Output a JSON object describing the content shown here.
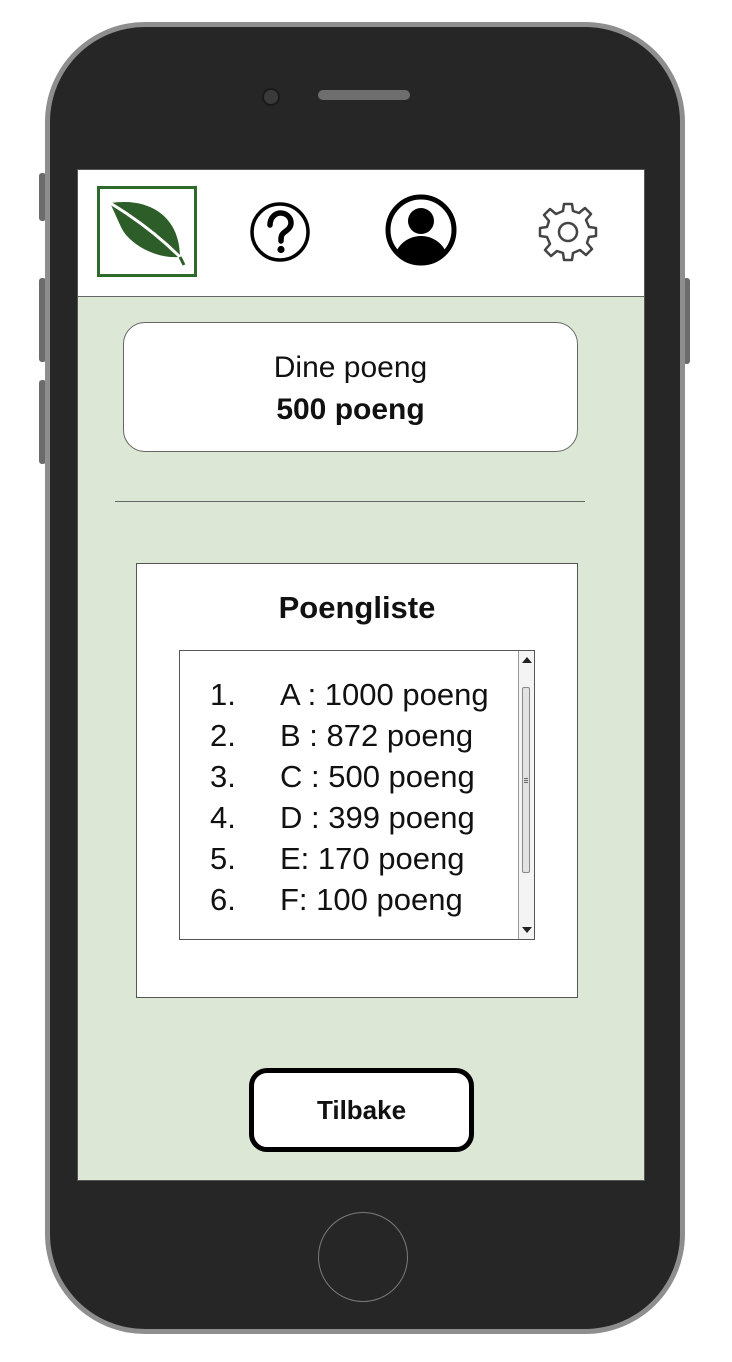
{
  "header": {
    "icons": [
      "leaf-logo-icon",
      "help-icon",
      "profile-icon",
      "gear-icon"
    ]
  },
  "points": {
    "label": "Dine poeng",
    "value": "500 poeng"
  },
  "leaderboard": {
    "title": "Poengliste",
    "items": [
      {
        "rank": "1.",
        "text": "A : 1000 poeng"
      },
      {
        "rank": "2.",
        "text": "B : 872 poeng"
      },
      {
        "rank": "3.",
        "text": "C : 500 poeng"
      },
      {
        "rank": "4.",
        "text": "D : 399 poeng"
      },
      {
        "rank": "5.",
        "text": "E:  170 poeng"
      },
      {
        "rank": "6.",
        "text": "F:  100 poeng"
      }
    ]
  },
  "actions": {
    "back_label": "Tilbake"
  },
  "colors": {
    "screen_background": "#dce8d5",
    "brand_green": "#2e6b2a",
    "leaf_green": "#2d5e2a"
  }
}
